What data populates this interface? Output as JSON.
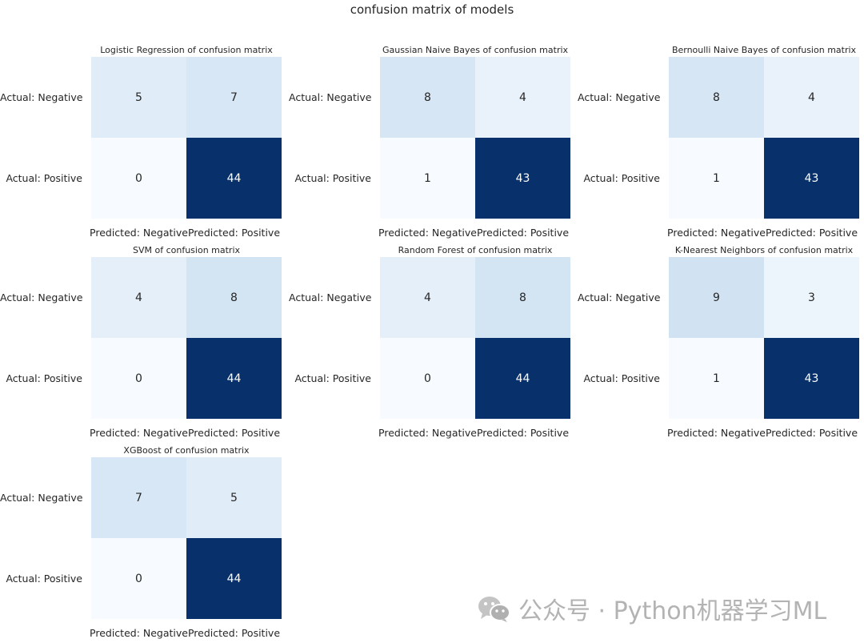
{
  "chart_data": [
    {
      "type": "heatmap",
      "title": "Logistic Regression of confusion matrix",
      "rows": [
        "Actual: Negative",
        "Actual: Positive"
      ],
      "cols": [
        "Predicted: Negative",
        "Predicted: Positive"
      ],
      "values": [
        [
          5,
          7
        ],
        [
          0,
          44
        ]
      ],
      "colormap": "Blues"
    },
    {
      "type": "heatmap",
      "title": "Gaussian Naive Bayes of confusion matrix",
      "rows": [
        "Actual: Negative",
        "Actual: Positive"
      ],
      "cols": [
        "Predicted: Negative",
        "Predicted: Positive"
      ],
      "values": [
        [
          8,
          4
        ],
        [
          1,
          43
        ]
      ],
      "colormap": "Blues"
    },
    {
      "type": "heatmap",
      "title": "Bernoulli Naive Bayes of confusion matrix",
      "rows": [
        "Actual: Negative",
        "Actual: Positive"
      ],
      "cols": [
        "Predicted: Negative",
        "Predicted: Positive"
      ],
      "values": [
        [
          8,
          4
        ],
        [
          1,
          43
        ]
      ],
      "colormap": "Blues"
    },
    {
      "type": "heatmap",
      "title": "SVM of confusion matrix",
      "rows": [
        "Actual: Negative",
        "Actual: Positive"
      ],
      "cols": [
        "Predicted: Negative",
        "Predicted: Positive"
      ],
      "values": [
        [
          4,
          8
        ],
        [
          0,
          44
        ]
      ],
      "colormap": "Blues"
    },
    {
      "type": "heatmap",
      "title": "Random Forest of confusion matrix",
      "rows": [
        "Actual: Negative",
        "Actual: Positive"
      ],
      "cols": [
        "Predicted: Negative",
        "Predicted: Positive"
      ],
      "values": [
        [
          4,
          8
        ],
        [
          0,
          44
        ]
      ],
      "colormap": "Blues"
    },
    {
      "type": "heatmap",
      "title": "K-Nearest Neighbors of confusion matrix",
      "rows": [
        "Actual: Negative",
        "Actual: Positive"
      ],
      "cols": [
        "Predicted: Negative",
        "Predicted: Positive"
      ],
      "values": [
        [
          9,
          3
        ],
        [
          1,
          43
        ]
      ],
      "colormap": "Blues"
    },
    {
      "type": "heatmap",
      "title": "XGBoost of confusion matrix",
      "rows": [
        "Actual: Negative",
        "Actual: Positive"
      ],
      "cols": [
        "Predicted: Negative",
        "Predicted: Positive"
      ],
      "values": [
        [
          7,
          5
        ],
        [
          0,
          44
        ]
      ],
      "colormap": "Blues"
    }
  ],
  "figure": {
    "suptitle": "confusion matrix of models",
    "watermark": "公众号 · Python机器学习ML",
    "watermark_icon": "wechat-icon"
  }
}
